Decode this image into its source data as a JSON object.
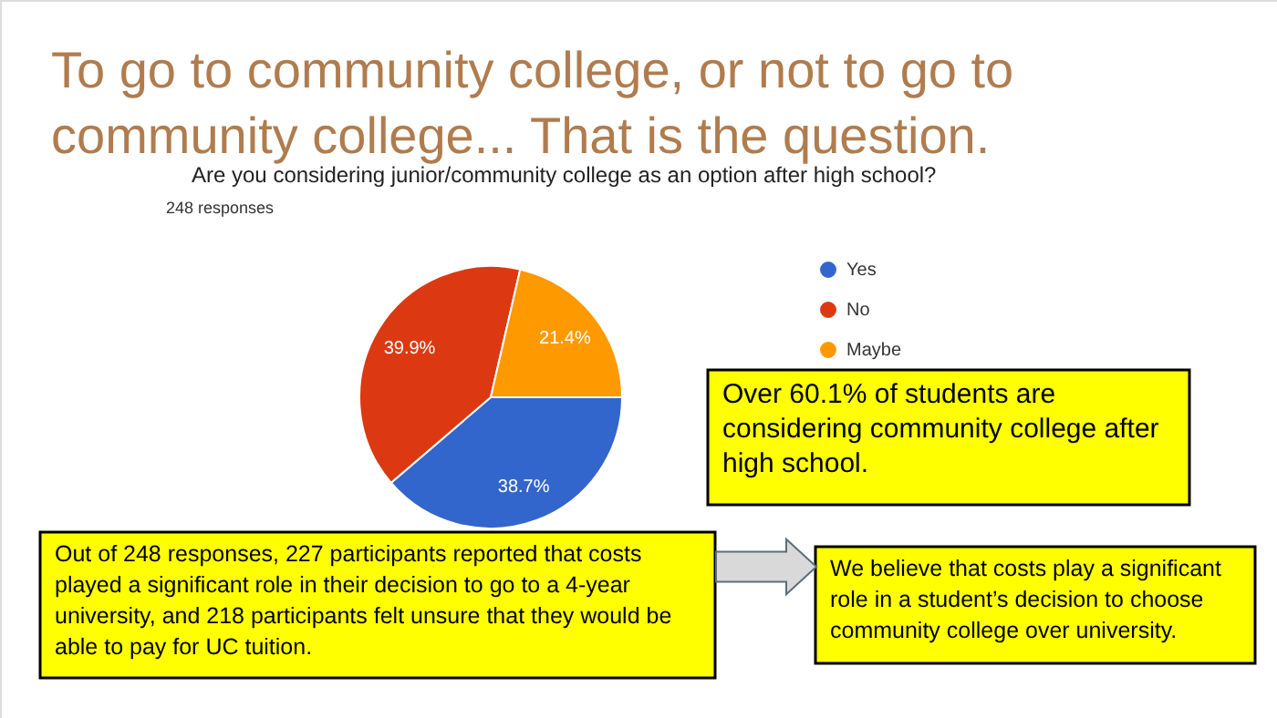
{
  "chart_data": {
    "type": "pie",
    "title": "To go to community college, or not to go to community college... That is the question.",
    "subtitle": "Are you considering junior/community college as an option after high school?",
    "categories": [
      "Yes",
      "No",
      "Maybe"
    ],
    "values": [
      38.7,
      39.9,
      21.4
    ],
    "colors": [
      "#3366cc",
      "#dc3912",
      "#ff9900"
    ],
    "value_labels": [
      "38.7%",
      "39.9%",
      "21.4%"
    ],
    "legend": "top right",
    "annotations": [
      "248 responses",
      "Over 60.1% of students are considering community college after high school.",
      "Out of 248 responses, 227 participants reported that costs played a significant role in their decision to go to a 4-year university, and 218 participants felt unsure that they would be able to pay for UC tuition.",
      "We believe that costs play a significant role in a student’s decision to choose community college over university."
    ]
  }
}
